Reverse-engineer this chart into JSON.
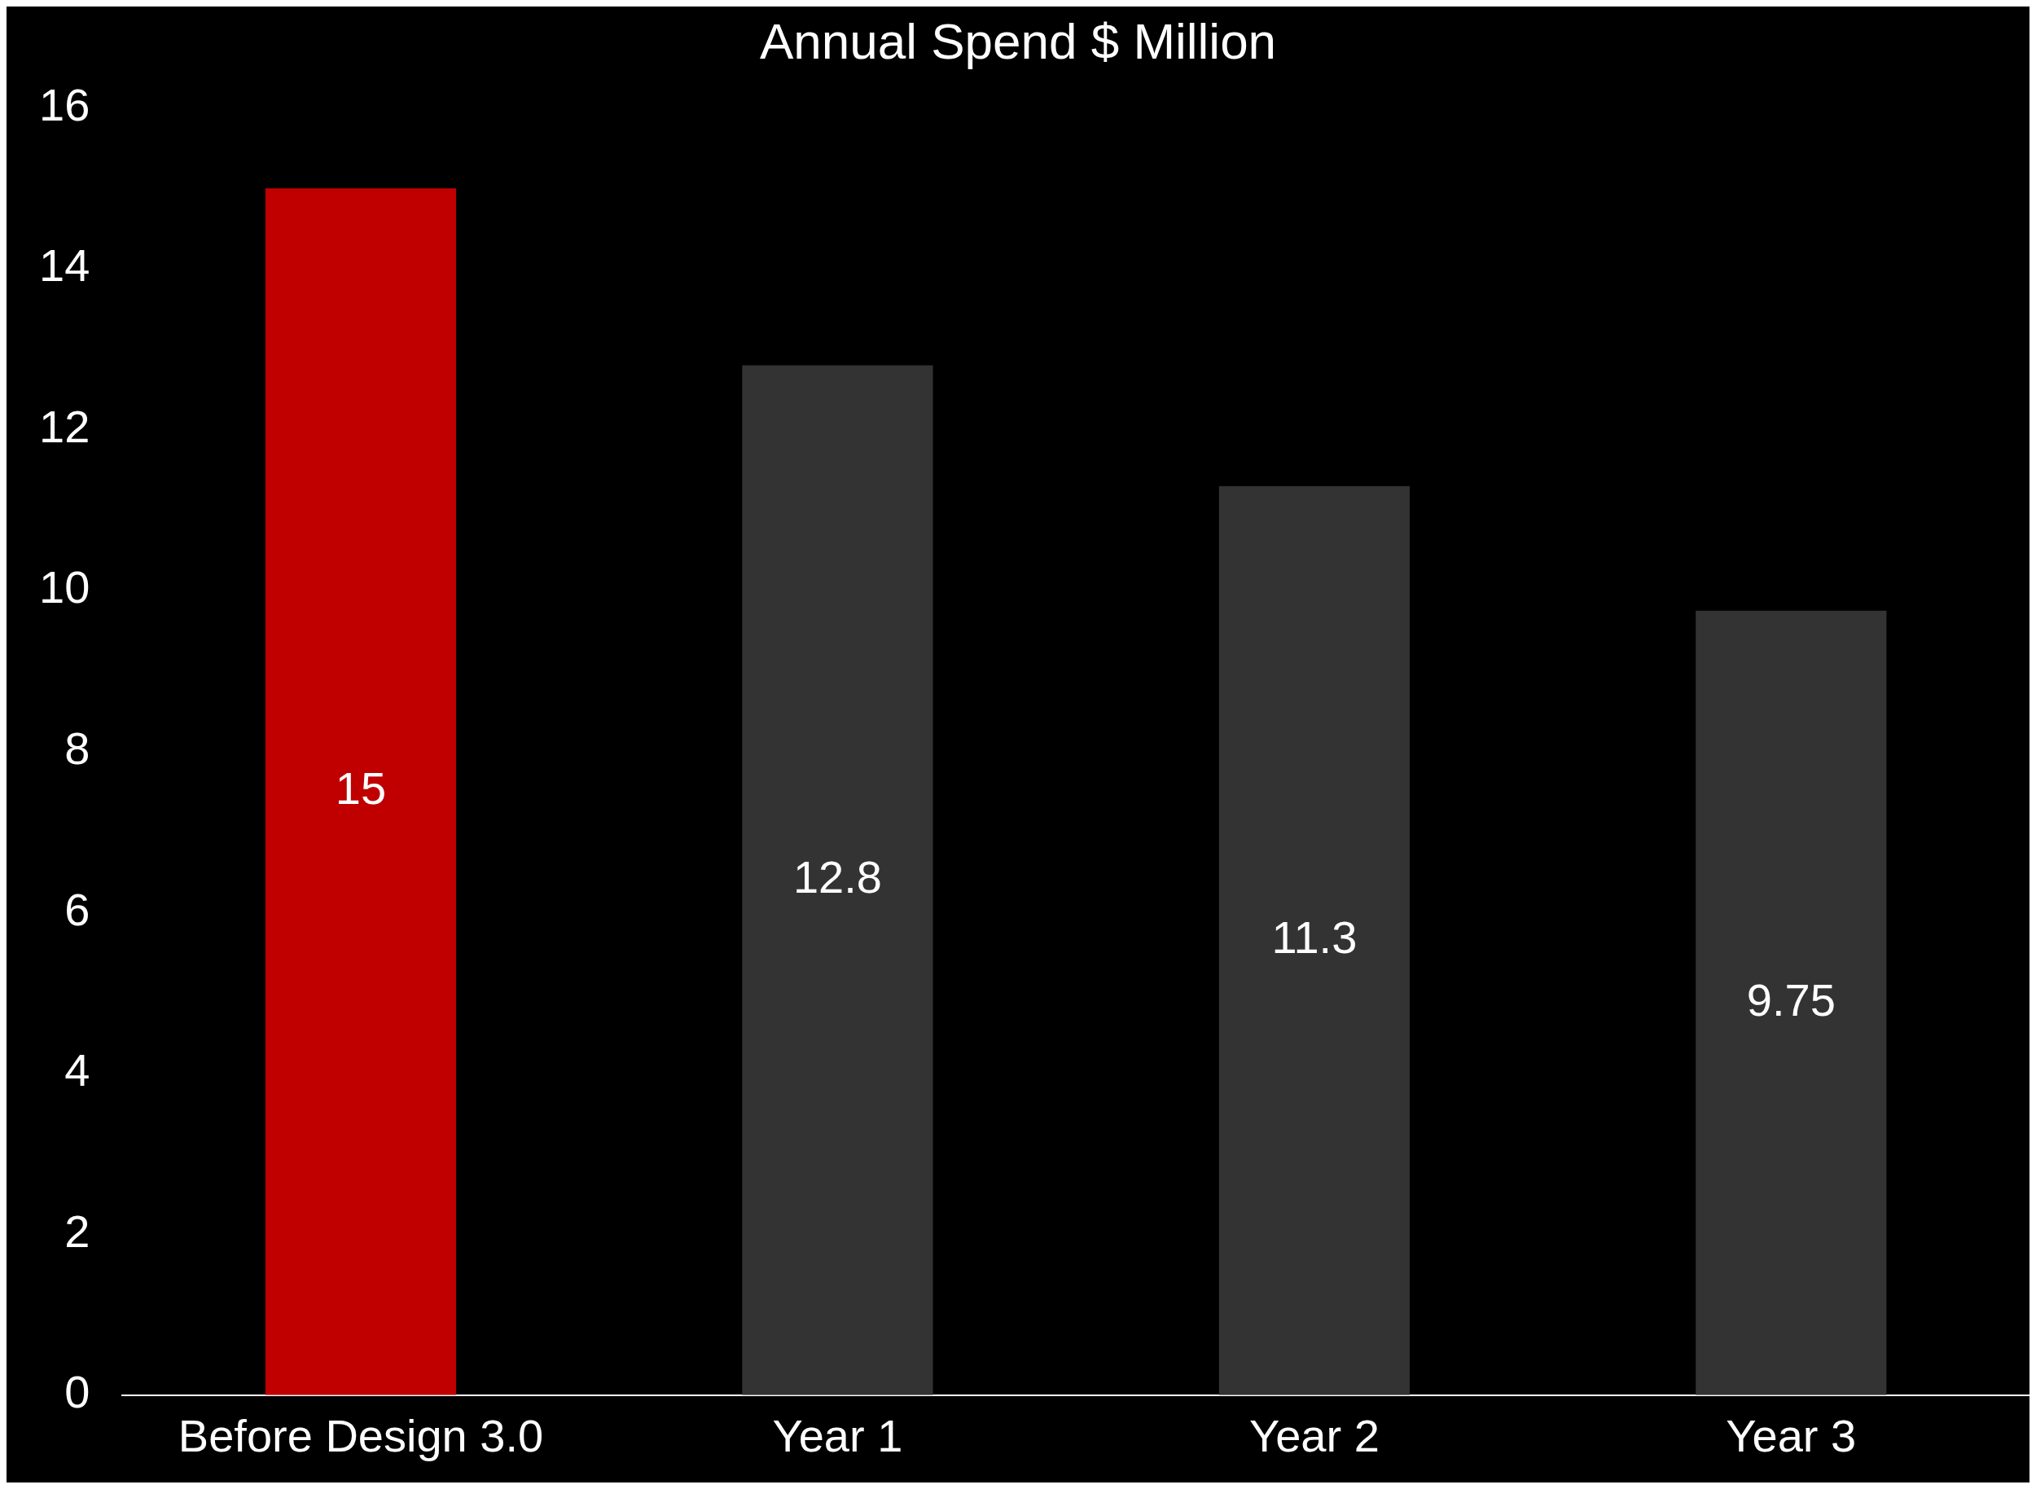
{
  "chart_data": {
    "type": "bar",
    "title": "Annual Spend $ Million",
    "categories": [
      "Before Design 3.0",
      "Year 1",
      "Year 2",
      "Year 3"
    ],
    "values": [
      15,
      12.8,
      11.3,
      9.75
    ],
    "colors": [
      "#c00000",
      "#333333",
      "#333333",
      "#333333"
    ],
    "ylim": [
      0,
      16
    ],
    "yticks": [
      0,
      2,
      4,
      6,
      8,
      10,
      12,
      14,
      16
    ],
    "grid": false,
    "legend": false,
    "data_labels": true
  }
}
